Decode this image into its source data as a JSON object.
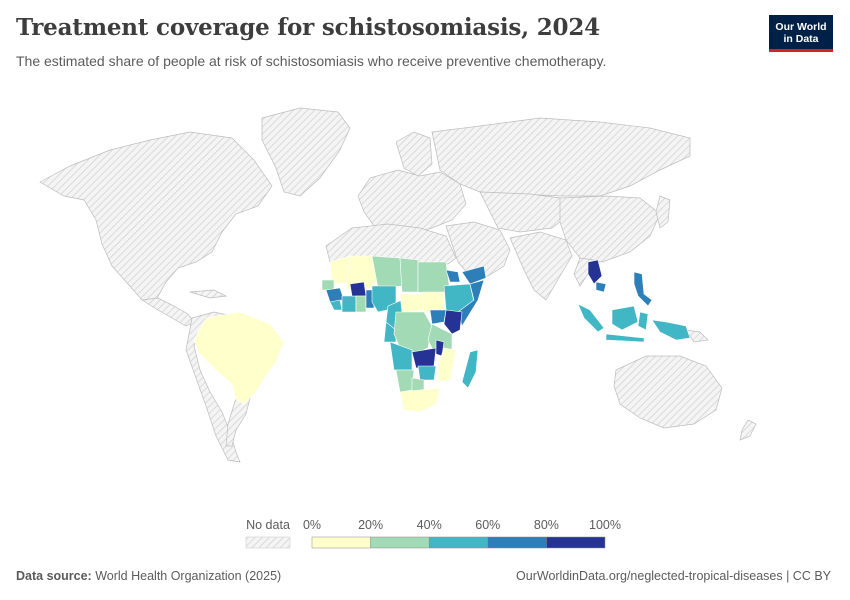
{
  "header": {
    "title": "Treatment coverage for schistosomiasis, 2024",
    "subtitle": "The estimated share of people at risk of schistosomiasis who receive preventive chemotherapy."
  },
  "logo": {
    "line1": "Our World",
    "line2": "in Data"
  },
  "legend": {
    "no_data_label": "No data",
    "ticks": [
      "0%",
      "20%",
      "40%",
      "60%",
      "80%",
      "100%"
    ],
    "bins": [
      {
        "range": "0-20%",
        "color": "#ffffcc"
      },
      {
        "range": "20-40%",
        "color": "#a1dab4"
      },
      {
        "range": "40-60%",
        "color": "#41b6c4"
      },
      {
        "range": "60-80%",
        "color": "#2c7fb8"
      },
      {
        "range": "80-100%",
        "color": "#253494"
      }
    ]
  },
  "footer": {
    "source_label": "Data source:",
    "source_value": "World Health Organization (2025)",
    "url_license": "OurWorldinData.org/neglected-tropical-diseases | CC BY"
  },
  "colors": {
    "no_data_fill": "#f2f2f2",
    "hatch": "#cfcfcf",
    "border": "#bdbdbd",
    "bin_0_20": "#ffffcc",
    "bin_20_40": "#a1dab4",
    "bin_40_60": "#41b6c4",
    "bin_60_80": "#2c7fb8",
    "bin_80_100": "#253494"
  }
}
